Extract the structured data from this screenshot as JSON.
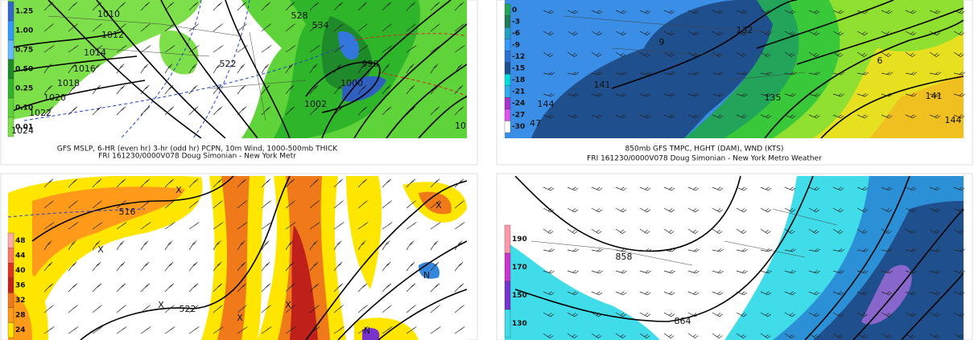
{
  "panels": [
    {
      "caption": [
        "GFS MSLP, 6-HR (even hr) 3-hr (odd hr) PCPN, 10m Wind, 1000-500mb THICK",
        "FRI 161230/0000V078 Doug Simonian - New York Metr"
      ],
      "legend": [
        "1.25",
        "1.00",
        "0.75",
        "0.50",
        "0.25",
        "0.10",
        "0.01"
      ],
      "labels": [
        "1010",
        "1012",
        "1014",
        "1016",
        "1018",
        "1020",
        "1022",
        "1024",
        "522",
        "528",
        "534",
        "998",
        "1000",
        "1002",
        "10"
      ]
    },
    {
      "caption": [
        "850mb GFS TMPC, HGHT (DAM), WND (KTS)",
        "FRI 161230/0000V078 Doug Simonian - New York Metro Weather"
      ],
      "legend": [
        "0",
        "-3",
        "-6",
        "-9",
        "-12",
        "-15",
        "-18",
        "-21",
        "-24",
        "-27",
        "-30"
      ],
      "labels": [
        "132",
        "9",
        "141",
        "144",
        "47",
        "135",
        "6",
        "141",
        "144"
      ]
    },
    {
      "caption": [],
      "legend": [
        "48",
        "44",
        "40",
        "36",
        "32",
        "28",
        "24"
      ],
      "labels": [
        "516",
        "522",
        "X",
        "X",
        "X",
        "X",
        "X",
        "X",
        "N",
        "N"
      ]
    },
    {
      "caption": [],
      "legend": [
        "190",
        "170",
        "150",
        "130"
      ],
      "labels": [
        "858",
        "864"
      ]
    }
  ]
}
